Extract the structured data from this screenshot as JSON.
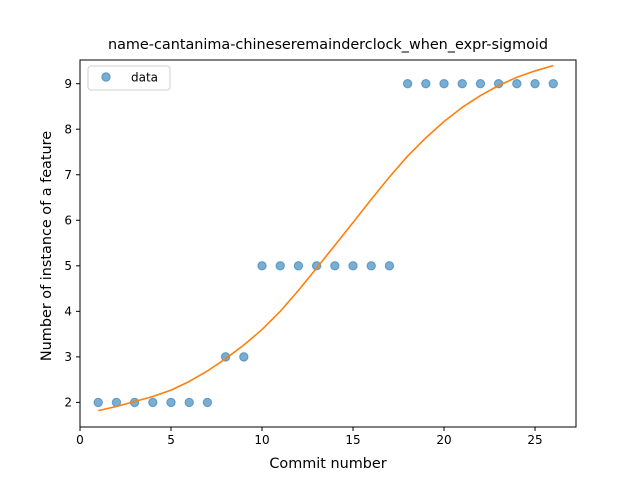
{
  "chart_data": {
    "type": "scatter",
    "title": "name-cantanima-chineseremainderclock_when_expr-sigmoid",
    "xlabel": "Commit number",
    "ylabel": "Number of instance of a feature",
    "xlim": [
      0,
      27.25
    ],
    "ylim": [
      1.46,
      9.52
    ],
    "xticks": [
      0,
      5,
      10,
      15,
      20,
      25
    ],
    "yticks": [
      2,
      3,
      4,
      5,
      6,
      7,
      8,
      9
    ],
    "grid": false,
    "legend_position": "top-left",
    "series": [
      {
        "name": "data",
        "kind": "scatter",
        "color": "#1f77b4",
        "x": [
          1,
          2,
          3,
          4,
          5,
          6,
          7,
          8,
          9,
          10,
          11,
          12,
          13,
          14,
          15,
          16,
          17,
          18,
          19,
          20,
          21,
          22,
          23,
          24,
          25,
          26
        ],
        "y": [
          2,
          2,
          2,
          2,
          2,
          2,
          2,
          3,
          3,
          5,
          5,
          5,
          5,
          5,
          5,
          5,
          5,
          9,
          9,
          9,
          9,
          9,
          9,
          9,
          9,
          9
        ]
      },
      {
        "kind": "line",
        "color": "#ff7f0e",
        "x": [
          1,
          2,
          3,
          4,
          5,
          6,
          7,
          8,
          9,
          10,
          11,
          12,
          13,
          14,
          15,
          16,
          17,
          18,
          19,
          20,
          21,
          22,
          23,
          24,
          25,
          26
        ],
        "y": [
          1.82,
          1.91,
          2.02,
          2.13,
          2.27,
          2.46,
          2.69,
          2.96,
          3.26,
          3.6,
          4.0,
          4.46,
          4.95,
          5.45,
          5.95,
          6.46,
          6.95,
          7.41,
          7.81,
          8.17,
          8.48,
          8.74,
          8.96,
          9.14,
          9.28,
          9.4
        ]
      }
    ]
  }
}
